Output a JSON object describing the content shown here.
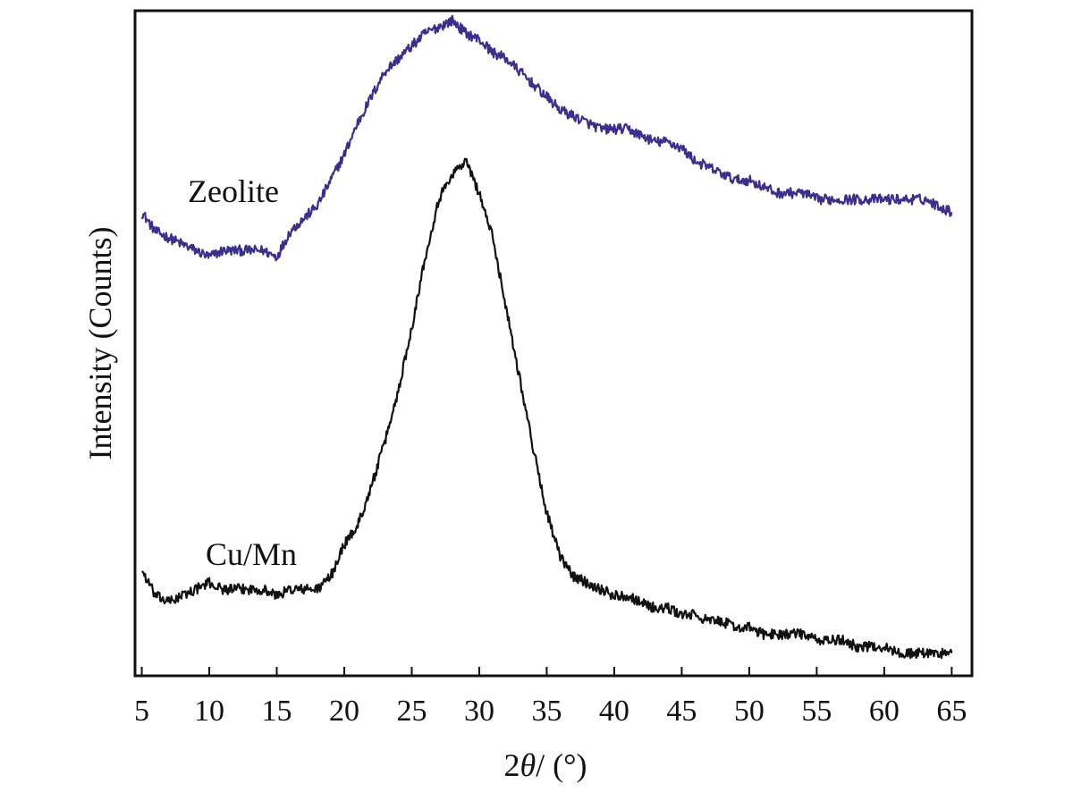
{
  "chart_data": {
    "type": "line",
    "title": "",
    "xlabel_prefix": "2",
    "xlabel_symbol": "θ",
    "xlabel_suffix": "/ (°)",
    "ylabel": "Intensity (Counts)",
    "xlim": [
      4.5,
      66.5
    ],
    "ylim": [
      0,
      100
    ],
    "xticks": [
      5,
      10,
      15,
      20,
      25,
      30,
      35,
      40,
      45,
      50,
      55,
      60,
      65
    ],
    "grid": false,
    "y_tick_labels": false,
    "series": [
      {
        "name": "Zeolite",
        "color": "#3a2f8c",
        "x": [
          5,
          6,
          7,
          8,
          9,
          10,
          11,
          12,
          13,
          14,
          15,
          16,
          17,
          18,
          19,
          20,
          21,
          22,
          23,
          24,
          25,
          26,
          27,
          28,
          29,
          30,
          31,
          32,
          33,
          34,
          35,
          36,
          37,
          38,
          39,
          40,
          41,
          42,
          43,
          44,
          45,
          46,
          47,
          48,
          49,
          50,
          51,
          52,
          53,
          54,
          55,
          56,
          57,
          58,
          59,
          60,
          61,
          62,
          63,
          64,
          65
        ],
        "y": [
          71,
          68,
          67,
          66,
          65,
          64,
          65,
          65,
          65,
          65,
          64,
          68,
          70,
          72,
          76,
          80,
          85,
          89,
          93,
          95,
          97,
          99,
          100,
          101,
          99,
          98,
          96,
          95,
          93,
          91,
          89,
          87,
          86,
          85,
          84,
          84,
          84,
          83,
          82,
          82,
          81,
          79,
          78,
          77,
          76,
          76,
          75,
          74,
          74,
          74,
          73,
          73,
          73,
          73,
          73,
          73,
          73,
          73,
          73,
          72,
          71
        ]
      },
      {
        "name": "Cu/Mn",
        "color": "#111111",
        "x": [
          5,
          6,
          7,
          8,
          9,
          10,
          11,
          12,
          13,
          14,
          15,
          16,
          17,
          18,
          19,
          20,
          21,
          22,
          23,
          24,
          25,
          26,
          27,
          28,
          29,
          30,
          31,
          32,
          33,
          34,
          35,
          36,
          37,
          38,
          39,
          40,
          41,
          42,
          43,
          44,
          45,
          46,
          47,
          48,
          49,
          50,
          51,
          52,
          53,
          54,
          55,
          56,
          57,
          58,
          59,
          60,
          61,
          62,
          63,
          64,
          65
        ],
        "y": [
          15,
          11,
          10,
          11,
          12,
          13,
          12,
          12,
          12,
          12,
          11,
          12,
          12,
          12,
          14,
          19,
          22,
          28,
          35,
          43,
          53,
          64,
          73,
          77,
          79,
          74,
          67,
          56,
          45,
          34,
          24,
          17,
          14,
          13,
          12,
          11,
          11,
          10,
          9,
          9,
          8,
          8,
          7,
          7,
          6,
          6,
          5,
          5,
          5,
          5,
          4,
          4,
          4,
          3,
          3,
          3,
          2,
          2,
          2,
          2,
          2
        ]
      }
    ]
  }
}
